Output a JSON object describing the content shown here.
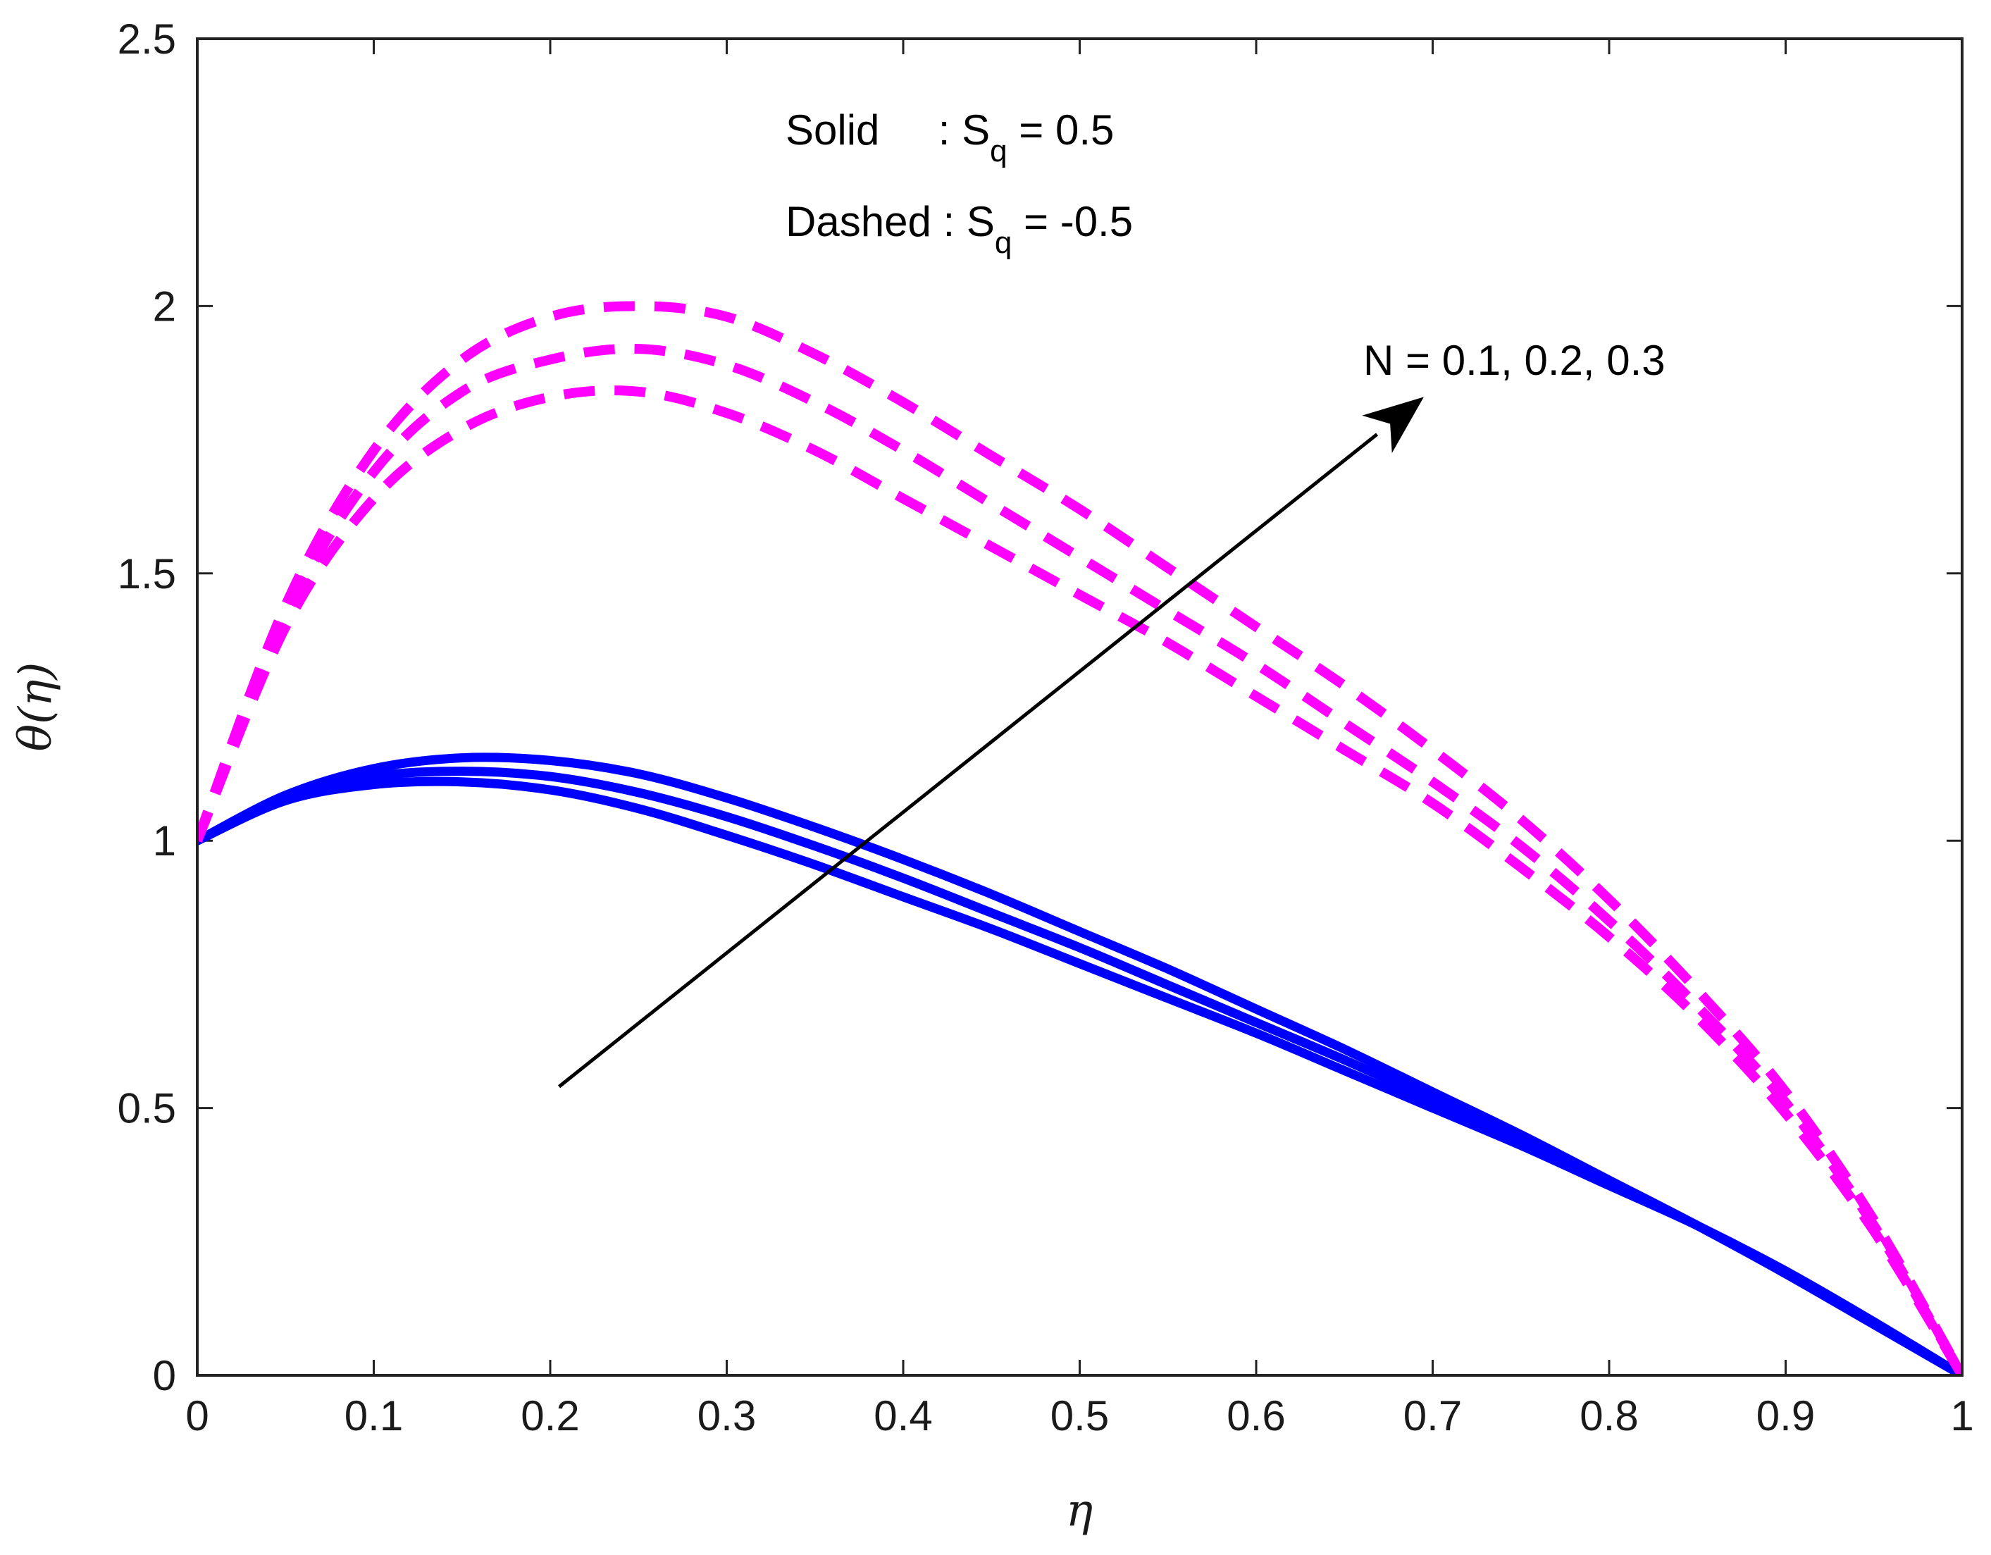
{
  "chart_data": {
    "type": "line",
    "title": "",
    "xlabel": "η",
    "ylabel": "θ(η)",
    "xlim": [
      0,
      1
    ],
    "ylim": [
      0,
      2.5
    ],
    "xticks": [
      0,
      0.1,
      0.2,
      0.3,
      0.4,
      0.5,
      0.6,
      0.7,
      0.8,
      0.9,
      1
    ],
    "xtick_labels": [
      "0",
      "0.1",
      "0.2",
      "0.3",
      "0.4",
      "0.5",
      "0.6",
      "0.7",
      "0.8",
      "0.9",
      "1"
    ],
    "yticks": [
      0,
      0.5,
      1,
      1.5,
      2,
      2.5
    ],
    "ytick_labels": [
      "0",
      "0.5",
      "1",
      "1.5",
      "2",
      "2.5"
    ],
    "grid": false,
    "x": [
      0,
      0.05,
      0.1,
      0.15,
      0.2,
      0.25,
      0.3,
      0.35,
      0.4,
      0.45,
      0.5,
      0.55,
      0.6,
      0.65,
      0.7,
      0.75,
      0.8,
      0.85,
      0.9,
      0.95,
      1
    ],
    "series": [
      {
        "name": "Solid, N = 0.1",
        "group": "solid",
        "color": "#0000ff",
        "values": [
          1.0,
          1.075,
          1.105,
          1.11,
          1.095,
          1.06,
          1.01,
          0.955,
          0.895,
          0.835,
          0.77,
          0.705,
          0.64,
          0.57,
          0.5,
          0.43,
          0.355,
          0.28,
          0.195,
          0.1,
          0.0
        ]
      },
      {
        "name": "Solid, N = 0.2",
        "group": "solid",
        "color": "#0000ff",
        "values": [
          1.0,
          1.08,
          1.12,
          1.13,
          1.12,
          1.09,
          1.045,
          0.99,
          0.93,
          0.865,
          0.8,
          0.73,
          0.66,
          0.59,
          0.515,
          0.44,
          0.36,
          0.28,
          0.195,
          0.1,
          0.0
        ]
      },
      {
        "name": "Solid, N = 0.3",
        "group": "solid",
        "color": "#0000ff",
        "values": [
          1.0,
          1.085,
          1.135,
          1.155,
          1.15,
          1.125,
          1.08,
          1.025,
          0.965,
          0.9,
          0.83,
          0.76,
          0.685,
          0.61,
          0.53,
          0.45,
          0.365,
          0.28,
          0.19,
          0.095,
          0.0
        ]
      },
      {
        "name": "Dashed, N = 0.1",
        "group": "dashed",
        "color": "#ff00ff",
        "values": [
          1.0,
          1.4,
          1.64,
          1.77,
          1.83,
          1.84,
          1.8,
          1.73,
          1.64,
          1.55,
          1.46,
          1.37,
          1.27,
          1.17,
          1.07,
          0.95,
          0.82,
          0.67,
          0.49,
          0.27,
          0.0
        ]
      },
      {
        "name": "Dashed, N = 0.2",
        "group": "dashed",
        "color": "#ff00ff",
        "values": [
          1.0,
          1.42,
          1.69,
          1.84,
          1.9,
          1.92,
          1.89,
          1.82,
          1.73,
          1.63,
          1.53,
          1.43,
          1.33,
          1.22,
          1.11,
          0.99,
          0.85,
          0.69,
          0.51,
          0.28,
          0.0
        ]
      },
      {
        "name": "Dashed, N = 0.3",
        "group": "dashed",
        "color": "#ff00ff",
        "values": [
          1.0,
          1.44,
          1.73,
          1.9,
          1.98,
          2.0,
          1.98,
          1.91,
          1.82,
          1.72,
          1.62,
          1.51,
          1.4,
          1.29,
          1.17,
          1.04,
          0.89,
          0.72,
          0.53,
          0.29,
          0.0
        ]
      }
    ],
    "annotations": {
      "legend_solid_label": "Solid     : S",
      "legend_solid_sub": "q",
      "legend_solid_value": " = 0.5",
      "legend_dashed_label": "Dashed : S",
      "legend_dashed_sub": "q",
      "legend_dashed_value": " = -0.5",
      "arrow_label": "N = 0.1, 0.2, 0.3",
      "arrow_from": [
        0.205,
        0.54
      ],
      "arrow_to": [
        0.695,
        1.83
      ]
    }
  }
}
